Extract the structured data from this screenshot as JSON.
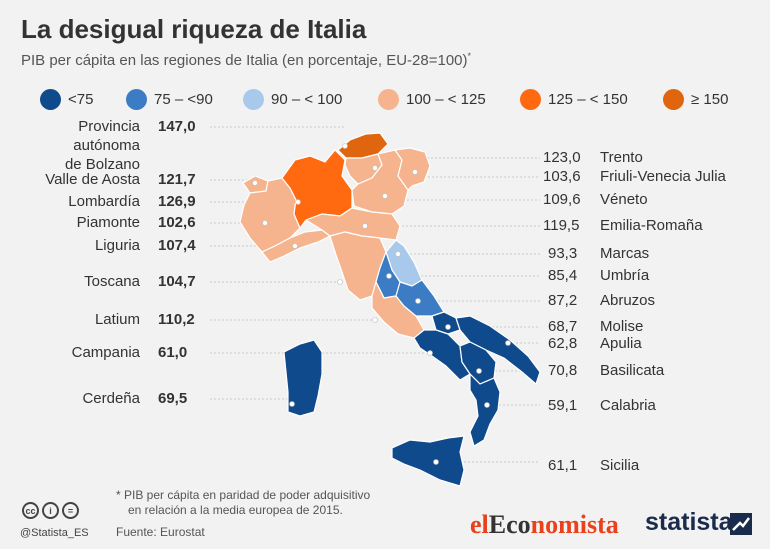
{
  "title": "La desigual riqueza de Italia",
  "subtitle": "PIB per cápita en las regiones de Italia (en porcentaje, EU-28=100)",
  "subtitle_mark": "*",
  "legend": [
    {
      "label": "<75",
      "color": "#0f4a8c"
    },
    {
      "label": "75 – <90",
      "color": "#3b7cc4"
    },
    {
      "label": "90 – < 100",
      "color": "#a9c9ec"
    },
    {
      "label": "100 – < 125",
      "color": "#f5b48e"
    },
    {
      "label": "125 – < 150",
      "color": "#ff6a10"
    },
    {
      "label": "≥ 150",
      "color": "#e0650f"
    }
  ],
  "regions_left": [
    {
      "name": "Provincia\nautónoma\nde Bolzano",
      "value": "147,0"
    },
    {
      "name": "Valle de Aosta",
      "value": "121,7"
    },
    {
      "name": "Lombardía",
      "value": "126,9"
    },
    {
      "name": "Piamonte",
      "value": "102,6"
    },
    {
      "name": "Liguria",
      "value": "107,4"
    },
    {
      "name": "Toscana",
      "value": "104,7"
    },
    {
      "name": "Latium",
      "value": "110,2"
    },
    {
      "name": "Campania",
      "value": "61,0"
    },
    {
      "name": "Cerdeña",
      "value": "69,5"
    }
  ],
  "regions_right": [
    {
      "name": "Trento",
      "value": "123,0"
    },
    {
      "name": "Friuli-Venecia Julia",
      "value": "103,6"
    },
    {
      "name": "Véneto",
      "value": "109,6"
    },
    {
      "name": "Emilia-Romaña",
      "value": "119,5"
    },
    {
      "name": "Marcas",
      "value": "93,3"
    },
    {
      "name": "Umbría",
      "value": "85,4"
    },
    {
      "name": "Abruzos",
      "value": "87,2"
    },
    {
      "name": "Molise",
      "value": "68,7"
    },
    {
      "name": "Apulia",
      "value": "62,8"
    },
    {
      "name": "Basilicata",
      "value": "70,8"
    },
    {
      "name": "Calabria",
      "value": "59,1"
    },
    {
      "name": "Sicilia",
      "value": "61,1"
    }
  ],
  "footnote_line1": "* PIB per cápita en paridad de poder adquisitivo",
  "footnote_line2": "en relación a la media europea de 2015.",
  "source": "Fuente: Eurostat",
  "handle": "@Statista_ES",
  "logo_el": "el",
  "logo_eco": "Eco",
  "logo_nomista": "nomista",
  "logo_statista": "statista"
}
